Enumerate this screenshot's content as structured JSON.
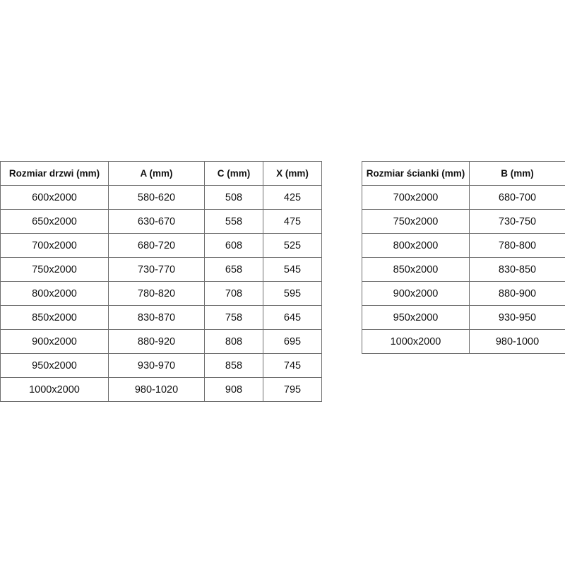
{
  "door_table": {
    "headers": [
      "Rozmiar drzwi (mm)",
      "A (mm)",
      "C (mm)",
      "X (mm)"
    ],
    "rows": [
      [
        "600x2000",
        "580-620",
        "508",
        "425"
      ],
      [
        "650x2000",
        "630-670",
        "558",
        "475"
      ],
      [
        "700x2000",
        "680-720",
        "608",
        "525"
      ],
      [
        "750x2000",
        "730-770",
        "658",
        "545"
      ],
      [
        "800x2000",
        "780-820",
        "708",
        "595"
      ],
      [
        "850x2000",
        "830-870",
        "758",
        "645"
      ],
      [
        "900x2000",
        "880-920",
        "808",
        "695"
      ],
      [
        "950x2000",
        "930-970",
        "858",
        "745"
      ],
      [
        "1000x2000",
        "980-1020",
        "908",
        "795"
      ]
    ]
  },
  "wall_table": {
    "headers": [
      "Rozmiar ścianki (mm)",
      "B (mm)"
    ],
    "rows": [
      [
        "700x2000",
        "680-700"
      ],
      [
        "750x2000",
        "730-750"
      ],
      [
        "800x2000",
        "780-800"
      ],
      [
        "850x2000",
        "830-850"
      ],
      [
        "900x2000",
        "880-900"
      ],
      [
        "950x2000",
        "930-950"
      ],
      [
        "1000x2000",
        "980-1000"
      ]
    ]
  }
}
